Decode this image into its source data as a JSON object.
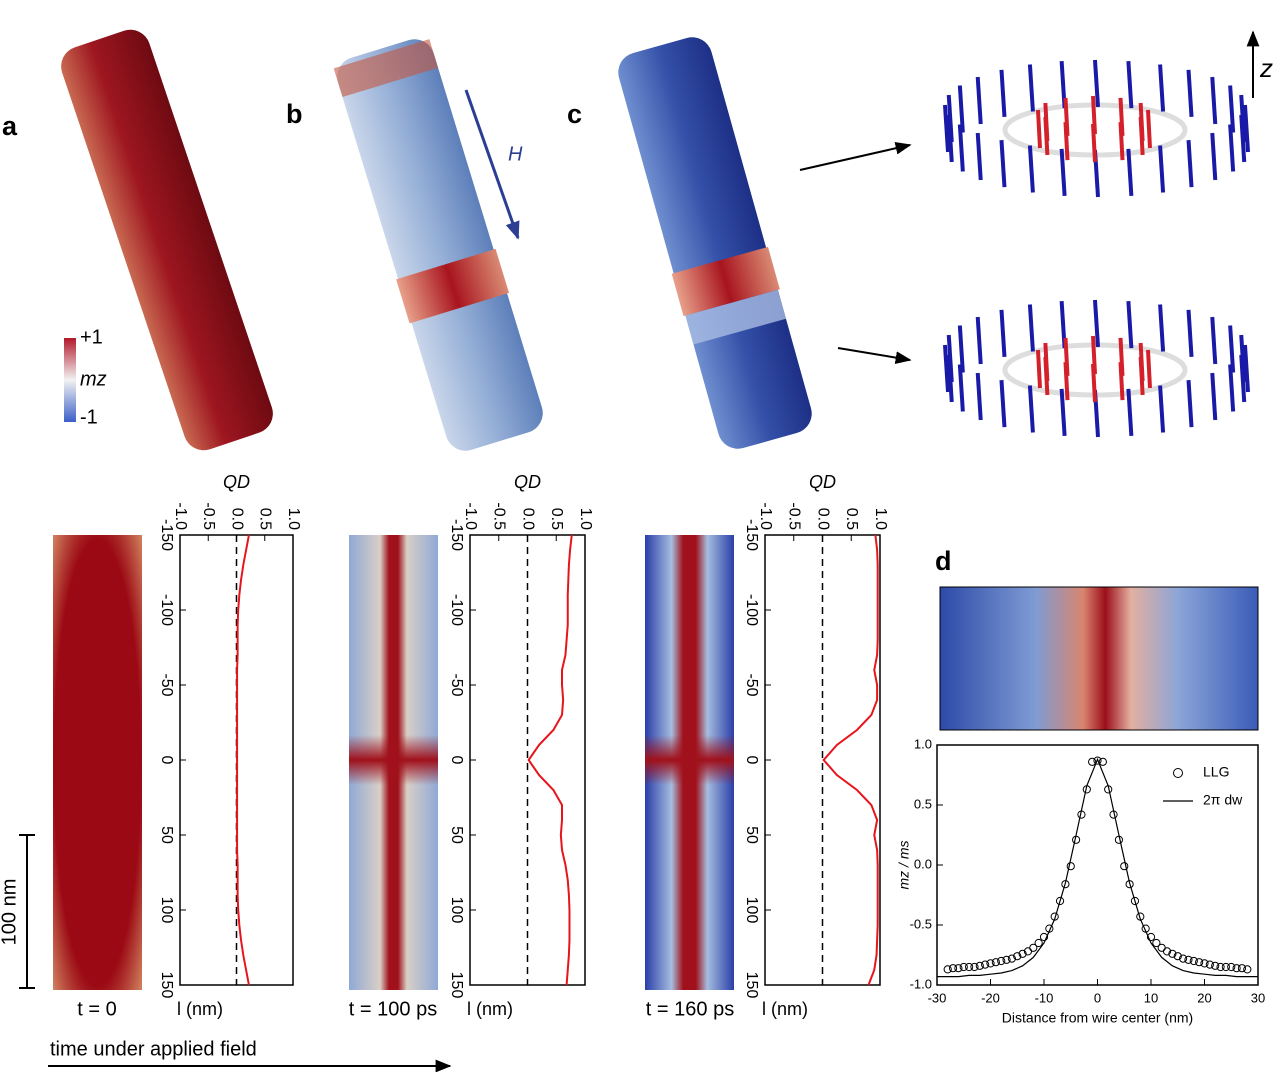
{
  "panel_labels": [
    "a",
    "b",
    "c",
    "d"
  ],
  "colorbar": {
    "max_label": "+1",
    "title": "mz",
    "min_label": "-1"
  },
  "field_label": "H",
  "axis_label": "z",
  "time_labels": [
    "t = 0",
    "t = 100 ps",
    "t = 160 ps"
  ],
  "scale_bar": "100 nm",
  "time_arrow": "time under applied field",
  "chart_data": [
    {
      "type": "line",
      "orientation": "horizontal",
      "xlabel": "l (nm)",
      "ylabel": "QD",
      "x": [
        -150,
        -140,
        -130,
        -120,
        -110,
        -100,
        -90,
        -80,
        -70,
        -60,
        -50,
        -40,
        -30,
        -20,
        -10,
        0,
        10,
        20,
        30,
        40,
        50,
        60,
        70,
        80,
        90,
        100,
        110,
        120,
        130,
        140,
        150
      ],
      "xlim": [
        -150,
        150
      ],
      "xticks": [
        -150,
        -100,
        -50,
        0,
        50,
        100,
        150
      ],
      "ylim": [
        -1,
        1
      ],
      "yticks": [
        {
          "value": -1,
          "label": "-1.0"
        },
        -0.5,
        {
          "value": 0,
          "label": "0.0"
        },
        0.5,
        {
          "value": 1,
          "label": "1.0"
        }
      ],
      "reference_line": 0,
      "series": [
        {
          "color": "#e8141c",
          "values": [
            0.22,
            0.17,
            0.12,
            0.08,
            0.05,
            0.03,
            0.02,
            0.02,
            0.02,
            0.01,
            0.01,
            0.01,
            0.01,
            0.01,
            0.01,
            0.01,
            0.01,
            0.01,
            0.01,
            0.01,
            0.01,
            0.01,
            0.02,
            0.02,
            0.02,
            0.03,
            0.05,
            0.08,
            0.12,
            0.17,
            0.22
          ]
        }
      ]
    },
    {
      "type": "line",
      "orientation": "horizontal",
      "xlabel": "l (nm)",
      "ylabel": "QD",
      "x": [
        -150,
        -140,
        -130,
        -120,
        -110,
        -100,
        -90,
        -80,
        -70,
        -60,
        -50,
        -40,
        -30,
        -20,
        -10,
        0,
        10,
        20,
        30,
        40,
        50,
        60,
        70,
        80,
        90,
        100,
        110,
        120,
        130,
        140,
        150
      ],
      "xlim": [
        -150,
        150
      ],
      "xticks": [
        -150,
        -100,
        -50,
        0,
        50,
        100,
        150
      ],
      "ylim": [
        -1,
        1
      ],
      "yticks": [
        {
          "value": -1,
          "label": "-1.0"
        },
        -0.5,
        {
          "value": 0,
          "label": "0.0"
        },
        0.5,
        {
          "value": 1,
          "label": "1.0"
        }
      ],
      "reference_line": 0,
      "series": [
        {
          "color": "#e8141c",
          "values": [
            0.77,
            0.74,
            0.72,
            0.71,
            0.7,
            0.7,
            0.7,
            0.68,
            0.66,
            0.6,
            0.6,
            0.62,
            0.6,
            0.45,
            0.2,
            0.02,
            0.2,
            0.45,
            0.6,
            0.6,
            0.58,
            0.6,
            0.66,
            0.7,
            0.72,
            0.73,
            0.73,
            0.73,
            0.72,
            0.7,
            0.68
          ]
        }
      ]
    },
    {
      "type": "line",
      "orientation": "horizontal",
      "xlabel": "l (nm)",
      "ylabel": "QD",
      "x": [
        -150,
        -140,
        -130,
        -120,
        -110,
        -100,
        -90,
        -80,
        -70,
        -60,
        -50,
        -40,
        -30,
        -20,
        -10,
        0,
        10,
        20,
        30,
        40,
        50,
        60,
        70,
        80,
        90,
        100,
        110,
        120,
        130,
        140,
        150
      ],
      "xlim": [
        -150,
        150
      ],
      "xticks": [
        -150,
        -100,
        -50,
        0,
        50,
        100,
        150
      ],
      "ylim": [
        -1,
        1
      ],
      "yticks": [
        {
          "value": -1,
          "label": "-1.0"
        },
        -0.5,
        {
          "value": 0,
          "label": "0.0"
        },
        0.5,
        {
          "value": 1,
          "label": "1.0"
        }
      ],
      "reference_line": 0,
      "series": [
        {
          "color": "#e8141c",
          "values": [
            0.92,
            0.95,
            0.96,
            0.96,
            0.96,
            0.96,
            0.96,
            0.96,
            0.95,
            0.9,
            0.95,
            0.95,
            0.85,
            0.6,
            0.25,
            0.02,
            0.25,
            0.6,
            0.85,
            0.95,
            0.9,
            0.95,
            0.96,
            0.96,
            0.96,
            0.96,
            0.96,
            0.95,
            0.94,
            0.9,
            0.8
          ]
        }
      ]
    },
    {
      "type": "line",
      "xlabel": "Distance from wire center (nm)",
      "ylabel": "mz / ms",
      "xlim": [
        -30,
        30
      ],
      "xticks": [
        -30,
        -20,
        -10,
        0,
        10,
        20,
        30
      ],
      "ylim": [
        -1,
        1
      ],
      "yticks": [
        {
          "value": -1,
          "label": "-1.0"
        },
        -0.5,
        {
          "value": 0,
          "label": "0.0"
        },
        0.5,
        {
          "value": 1,
          "label": "1.0"
        }
      ],
      "legend": "upper right",
      "series": [
        {
          "name": "LLG",
          "color": "#000000",
          "marker": "circle",
          "x": [
            -28,
            -27,
            -26,
            -25,
            -24,
            -23,
            -22,
            -21,
            -20,
            -19,
            -18,
            -17,
            -16,
            -15,
            -14,
            -13,
            -12,
            -11,
            -10,
            -9,
            -8,
            -7,
            -6,
            -5,
            -4,
            -3,
            -2,
            -1,
            0,
            1,
            2,
            3,
            4,
            5,
            6,
            7,
            8,
            9,
            10,
            11,
            12,
            13,
            14,
            15,
            16,
            17,
            18,
            19,
            20,
            21,
            22,
            23,
            24,
            25,
            26,
            27,
            28
          ],
          "values": [
            -0.87,
            -0.86,
            -0.86,
            -0.85,
            -0.85,
            -0.85,
            -0.84,
            -0.83,
            -0.82,
            -0.81,
            -0.8,
            -0.79,
            -0.78,
            -0.76,
            -0.74,
            -0.72,
            -0.69,
            -0.65,
            -0.6,
            -0.53,
            -0.43,
            -0.3,
            -0.16,
            -0.01,
            0.21,
            0.42,
            0.63,
            0.86,
            0.87,
            0.86,
            0.63,
            0.42,
            0.21,
            -0.01,
            -0.16,
            -0.3,
            -0.43,
            -0.53,
            -0.6,
            -0.65,
            -0.69,
            -0.72,
            -0.74,
            -0.76,
            -0.78,
            -0.79,
            -0.8,
            -0.81,
            -0.82,
            -0.83,
            -0.84,
            -0.85,
            -0.85,
            -0.85,
            -0.86,
            -0.86,
            -0.87
          ]
        },
        {
          "name": "2π dw",
          "color": "#000000",
          "marker": "none",
          "x": [
            -30,
            -28,
            -26,
            -24,
            -22,
            -20,
            -18,
            -16,
            -14,
            -12,
            -10,
            -8,
            -6,
            -4,
            -2,
            0,
            2,
            4,
            6,
            8,
            10,
            12,
            14,
            16,
            18,
            20,
            22,
            24,
            26,
            28,
            30
          ],
          "values": [
            -0.93,
            -0.93,
            -0.93,
            -0.92,
            -0.92,
            -0.91,
            -0.9,
            -0.88,
            -0.84,
            -0.77,
            -0.65,
            -0.45,
            -0.15,
            0.25,
            0.66,
            0.88,
            0.66,
            0.25,
            -0.15,
            -0.45,
            -0.65,
            -0.77,
            -0.84,
            -0.88,
            -0.9,
            -0.91,
            -0.92,
            -0.92,
            -0.93,
            -0.93,
            -0.93
          ]
        }
      ]
    }
  ]
}
